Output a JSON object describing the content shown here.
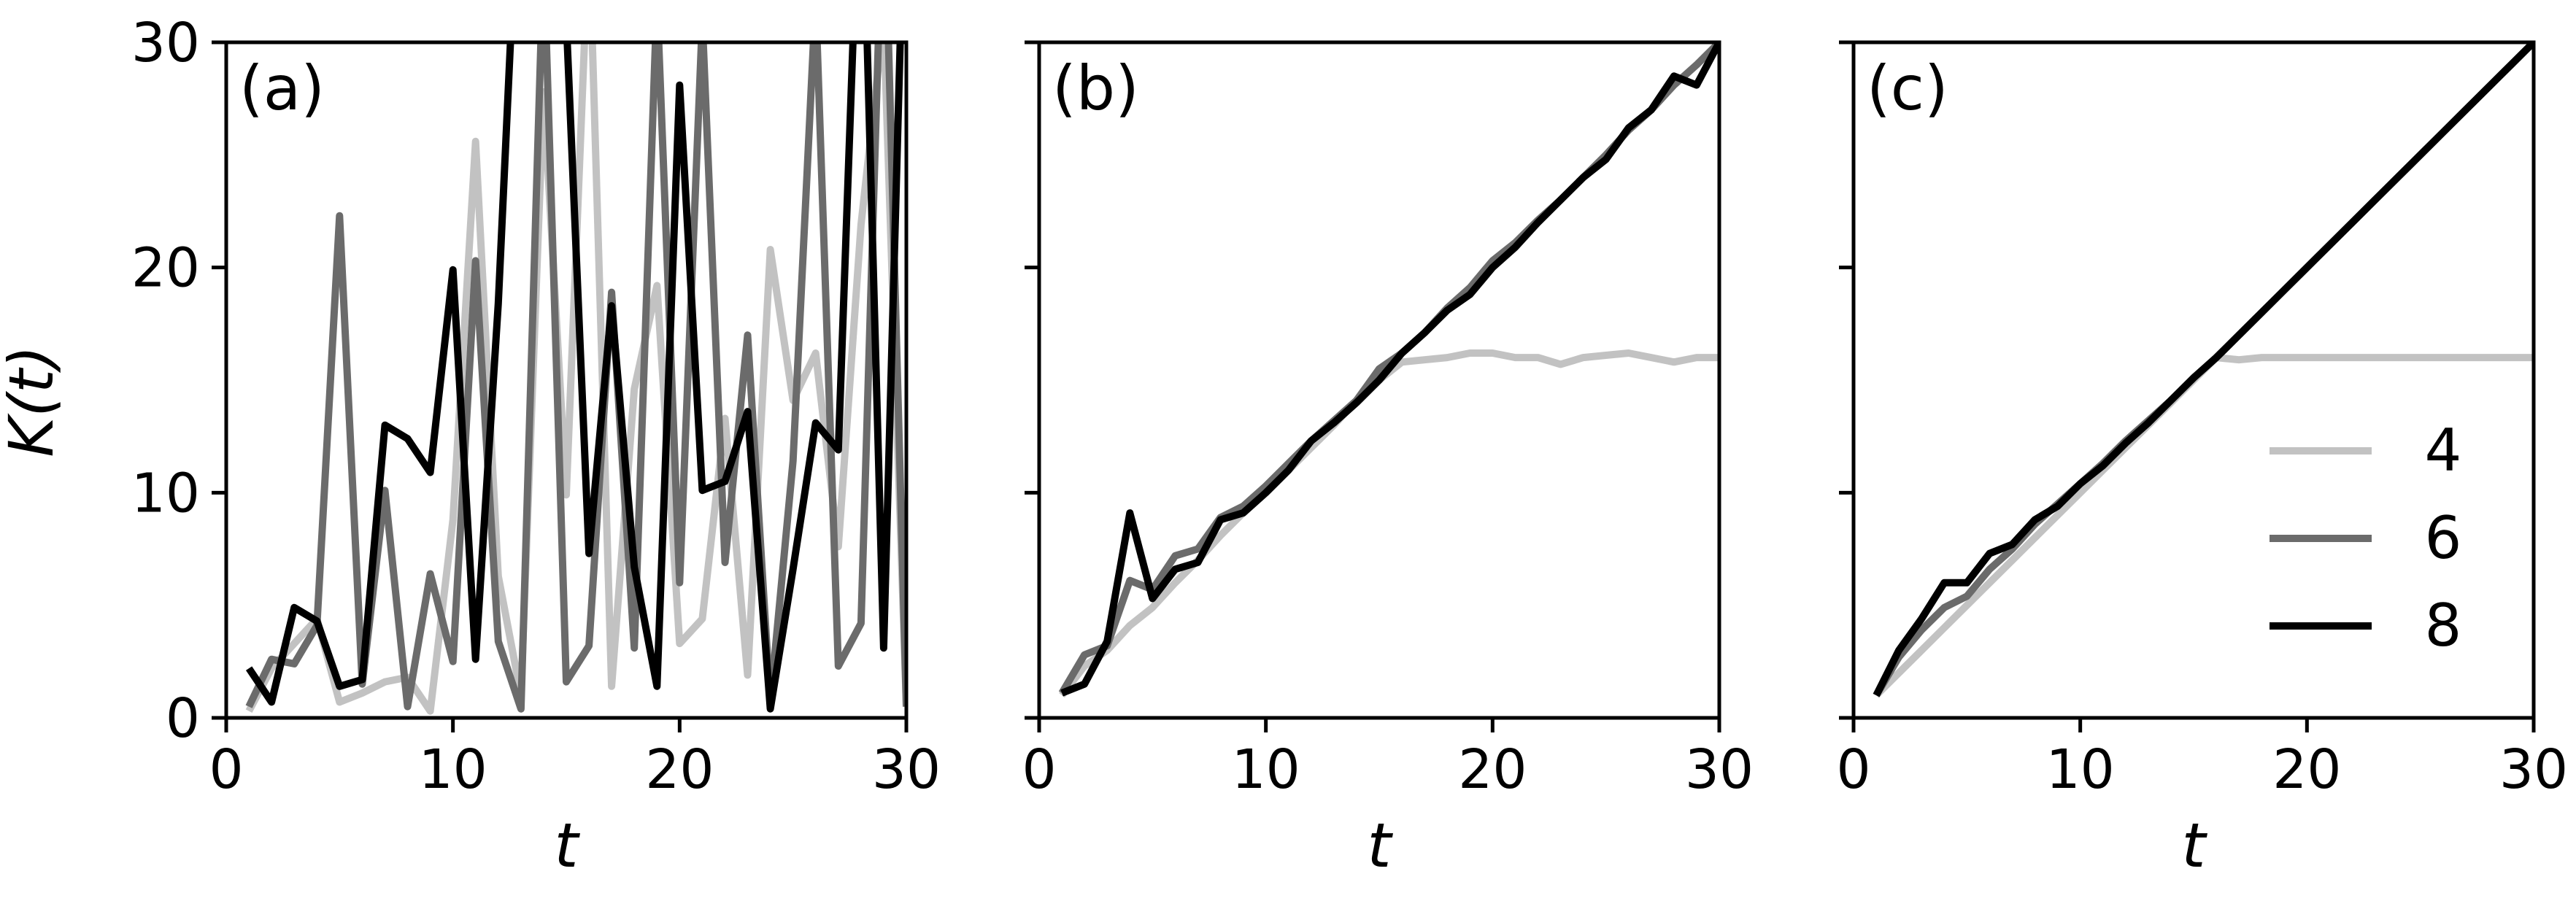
{
  "chart_data": [
    {
      "type": "line",
      "panel_label": "(a)",
      "xlabel": "t",
      "ylabel": "K(t)",
      "xlim": [
        0,
        30
      ],
      "ylim": [
        0,
        30
      ],
      "xticks": [
        "0",
        "10",
        "20",
        "30"
      ],
      "yticks": [
        "0",
        "10",
        "20",
        "30"
      ],
      "grid": false,
      "x": [
        1,
        2,
        3,
        4,
        5,
        6,
        7,
        8,
        9,
        10,
        11,
        12,
        13,
        14,
        15,
        16,
        17,
        18,
        19,
        20,
        21,
        22,
        23,
        24,
        25,
        26,
        27,
        28,
        29,
        30
      ],
      "series": [
        {
          "name": "4",
          "color": "#c2c2c2",
          "values": [
            0.3,
            2.2,
            3.3,
            4.4,
            0.7,
            1.1,
            1.6,
            1.8,
            0.3,
            8.8,
            25.6,
            6.3,
            1.0,
            27.8,
            9.9,
            35,
            1.4,
            14.6,
            19.2,
            3.3,
            4.4,
            13.3,
            1.9,
            20.8,
            14.1,
            16.2,
            7.6,
            21.9,
            31,
            0.5
          ]
        },
        {
          "name": "6",
          "color": "#6b6b6b",
          "values": [
            0.5,
            2.6,
            2.4,
            4.1,
            22.3,
            1.5,
            10.1,
            0.5,
            6.4,
            2.5,
            20.3,
            3.4,
            0.4,
            34,
            1.6,
            3.2,
            18.9,
            3.1,
            32,
            6.0,
            31,
            6.9,
            17.0,
            0.7,
            11.4,
            32,
            2.3,
            4.2,
            38,
            0.5
          ]
        },
        {
          "name": "8",
          "color": "#000000",
          "values": [
            2.2,
            0.7,
            4.9,
            4.3,
            1.4,
            1.7,
            13.0,
            12.4,
            10.9,
            19.9,
            2.6,
            18.4,
            40,
            40,
            31,
            7.3,
            18.3,
            6.7,
            1.4,
            28.1,
            10.1,
            10.5,
            13.6,
            0.4,
            6.6,
            13.1,
            11.9,
            40,
            3.1,
            40
          ]
        }
      ]
    },
    {
      "type": "line",
      "panel_label": "(b)",
      "xlabel": "t",
      "xlim": [
        0,
        30
      ],
      "ylim": [
        0,
        30
      ],
      "xticks": [
        "0",
        "10",
        "20",
        "30"
      ],
      "grid": false,
      "x": [
        1,
        2,
        3,
        4,
        5,
        6,
        7,
        8,
        9,
        10,
        11,
        12,
        13,
        14,
        15,
        16,
        17,
        18,
        19,
        20,
        21,
        22,
        23,
        24,
        25,
        26,
        27,
        28,
        29,
        30
      ],
      "series": [
        {
          "name": "4",
          "color": "#c2c2c2",
          "values": [
            1.0,
            2.3,
            3.0,
            4.1,
            4.9,
            6.0,
            7.0,
            8.1,
            9.1,
            10.0,
            11.0,
            12.0,
            13.0,
            14.1,
            15.0,
            15.8,
            15.9,
            16.0,
            16.2,
            16.2,
            16.0,
            16.0,
            15.7,
            16.0,
            16.1,
            16.2,
            16.0,
            15.8,
            16.0,
            16.0
          ]
        },
        {
          "name": "6",
          "color": "#6b6b6b",
          "values": [
            1.1,
            2.8,
            3.2,
            6.1,
            5.7,
            7.2,
            7.5,
            8.9,
            9.4,
            10.3,
            11.3,
            12.3,
            13.2,
            14.1,
            15.5,
            16.2,
            17.1,
            18.2,
            19.1,
            20.3,
            21.1,
            22.1,
            23.0,
            24.0,
            25.0,
            26.1,
            27.0,
            28.1,
            29.0,
            30.0
          ]
        },
        {
          "name": "8",
          "color": "#000000",
          "values": [
            1.1,
            1.5,
            3.4,
            9.1,
            5.3,
            6.6,
            6.9,
            8.8,
            9.1,
            10.0,
            11.0,
            12.3,
            13.1,
            14.0,
            15.0,
            16.2,
            17.1,
            18.1,
            18.8,
            20.0,
            20.9,
            22.0,
            23.0,
            24.0,
            24.8,
            26.2,
            27.0,
            28.5,
            28.1,
            30.0
          ]
        }
      ]
    },
    {
      "type": "line",
      "panel_label": "(c)",
      "xlabel": "t",
      "xlim": [
        0,
        30
      ],
      "ylim": [
        0,
        30
      ],
      "xticks": [
        "0",
        "10",
        "20",
        "30"
      ],
      "grid": false,
      "legend_position": "lower-right",
      "x": [
        1,
        2,
        3,
        4,
        5,
        6,
        7,
        8,
        9,
        10,
        11,
        12,
        13,
        14,
        15,
        16,
        17,
        18,
        19,
        20,
        21,
        22,
        23,
        24,
        25,
        26,
        27,
        28,
        29,
        30
      ],
      "series": [
        {
          "name": "4",
          "color": "#c2c2c2",
          "values": [
            1.0,
            2.0,
            3.0,
            4.0,
            5.0,
            6.0,
            7.0,
            8.0,
            9.0,
            10.0,
            11.0,
            12.0,
            13.0,
            14.0,
            15.0,
            16.0,
            15.9,
            16.0,
            16.0,
            16.0,
            16.0,
            16.0,
            16.0,
            16.0,
            16.0,
            16.0,
            16.0,
            16.0,
            16.0,
            16.0
          ]
        },
        {
          "name": "6",
          "color": "#6b6b6b",
          "values": [
            1.0,
            2.7,
            3.9,
            4.9,
            5.4,
            6.6,
            7.5,
            8.6,
            9.5,
            10.4,
            11.3,
            12.3,
            13.2,
            14.1,
            15.1,
            16.0,
            17.0,
            18.0,
            19.0,
            20.0,
            21.0,
            22.0,
            23.0,
            24.0,
            25.0,
            26.0,
            27.0,
            28.0,
            29.0,
            30.0
          ]
        },
        {
          "name": "8",
          "color": "#000000",
          "values": [
            1.0,
            3.0,
            4.4,
            6.0,
            6.0,
            7.3,
            7.7,
            8.8,
            9.4,
            10.4,
            11.2,
            12.2,
            13.1,
            14.1,
            15.1,
            16.0,
            17.0,
            18.0,
            19.0,
            20.0,
            21.0,
            22.0,
            23.0,
            24.0,
            25.0,
            26.0,
            27.0,
            28.0,
            29.0,
            30.0
          ]
        }
      ]
    }
  ]
}
